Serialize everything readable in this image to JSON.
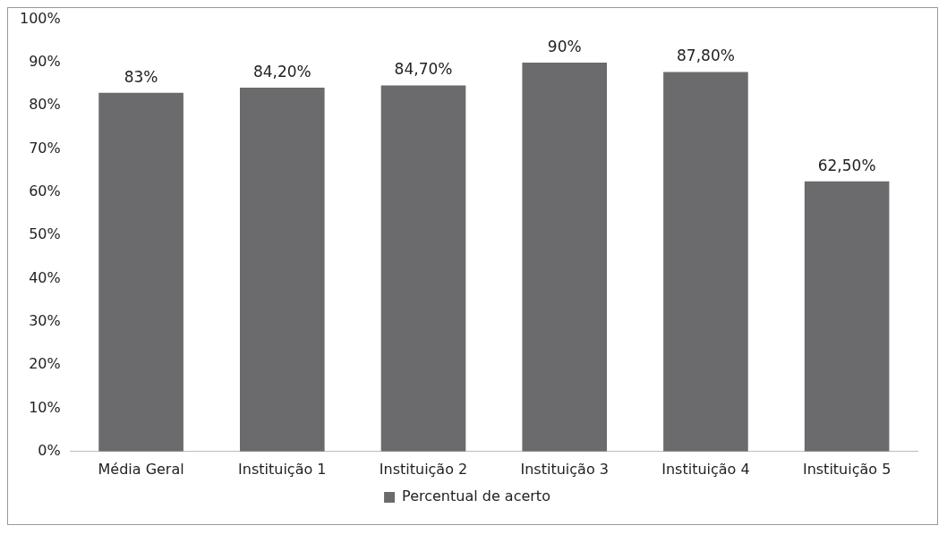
{
  "chart_data": {
    "type": "bar",
    "categories": [
      "Média Geral",
      "Instituição 1",
      "Instituição 2",
      "Instituição 3",
      "Instituição 4",
      "Instituição 5"
    ],
    "series": [
      {
        "name": "Percentual de acerto",
        "color": "#6b6b6d",
        "values": [
          83,
          84.2,
          84.7,
          90,
          87.8,
          62.5
        ],
        "value_labels": [
          "83%",
          "84,20%",
          "84,70%",
          "90%",
          "87,80%",
          "62,50%"
        ]
      }
    ],
    "ylim": [
      0,
      100
    ],
    "yticks": [
      {
        "value": 0,
        "label": "0%"
      },
      {
        "value": 10,
        "label": "10%"
      },
      {
        "value": 20,
        "label": "20%"
      },
      {
        "value": 30,
        "label": "30%"
      },
      {
        "value": 40,
        "label": "40%"
      },
      {
        "value": 50,
        "label": "50%"
      },
      {
        "value": 60,
        "label": "60%"
      },
      {
        "value": 70,
        "label": "70%"
      },
      {
        "value": 80,
        "label": "80%"
      },
      {
        "value": 90,
        "label": "90%"
      },
      {
        "value": 100,
        "label": "100%"
      }
    ],
    "grid": false,
    "legend": "bottom"
  }
}
